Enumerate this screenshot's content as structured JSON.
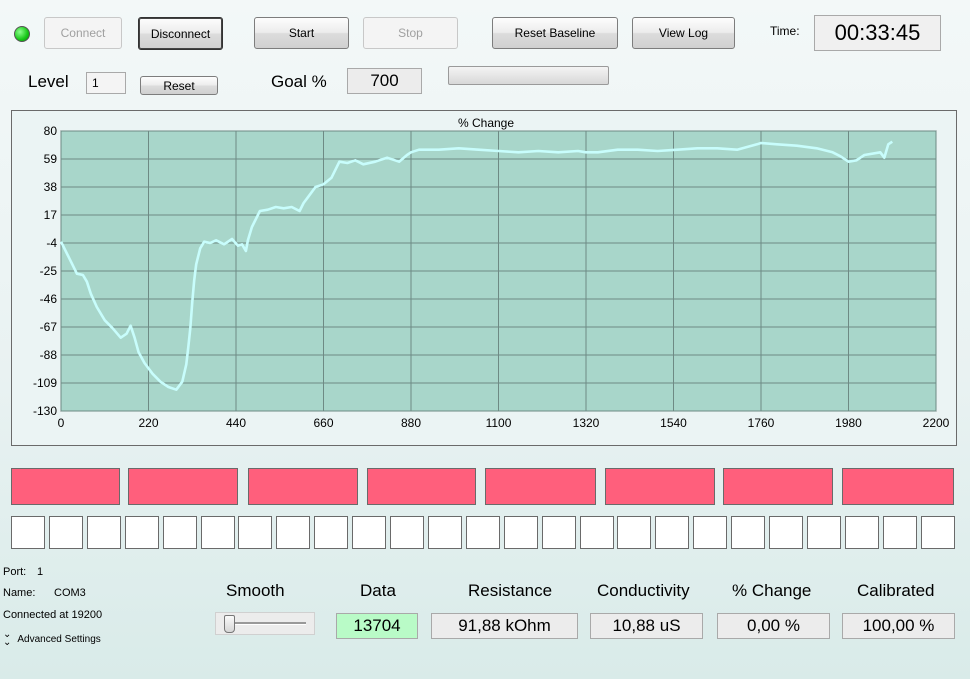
{
  "status": {
    "indicator_color": "#22dd22"
  },
  "toolbar": {
    "connect": "Connect",
    "disconnect": "Disconnect",
    "start": "Start",
    "stop": "Stop",
    "reset_baseline": "Reset Baseline",
    "view_log": "View Log",
    "time_label": "Time:",
    "time_value": "00:33:45"
  },
  "level": {
    "label": "Level",
    "value": "1",
    "reset": "Reset"
  },
  "goal": {
    "label": "Goal %",
    "value": "700",
    "progress": 0
  },
  "chart_data": {
    "type": "line",
    "title": "% Change",
    "xlim": [
      0,
      2200
    ],
    "ylim": [
      -130,
      80
    ],
    "xticks": [
      0,
      220,
      440,
      660,
      880,
      1100,
      1320,
      1540,
      1760,
      1980,
      2200
    ],
    "yticks": [
      80,
      59,
      38,
      17,
      -4,
      -25,
      -46,
      -67,
      -88,
      -109,
      -130
    ],
    "grid": true,
    "colors": {
      "plot_bg": "#a8d6ca",
      "line": "#c8fdfc",
      "grid": "#6e8a84"
    },
    "series": [
      {
        "x": [
          0,
          20,
          40,
          55,
          65,
          75,
          90,
          110,
          130,
          150,
          165,
          175,
          185,
          195,
          210,
          230,
          250,
          270,
          290,
          305,
          315,
          320,
          325,
          330,
          335,
          340,
          350,
          360,
          375,
          390,
          410,
          430,
          445,
          455,
          465,
          470,
          480,
          490,
          500,
          520,
          540,
          560,
          580,
          600,
          610,
          620,
          640,
          660,
          680,
          700,
          720,
          740,
          760,
          790,
          820,
          850,
          870,
          880,
          900,
          950,
          1000,
          1050,
          1100,
          1150,
          1200,
          1250,
          1300,
          1320,
          1350,
          1400,
          1450,
          1500,
          1550,
          1600,
          1650,
          1700,
          1750,
          1760,
          1800,
          1850,
          1900,
          1940,
          1960,
          1980,
          2000,
          2020,
          2060,
          2070,
          2080,
          2090
        ],
        "y": [
          -3,
          -15,
          -27,
          -28,
          -33,
          -42,
          -52,
          -62,
          -68,
          -75,
          -72,
          -66,
          -75,
          -86,
          -94,
          -102,
          -108,
          -112,
          -114,
          -108,
          -95,
          -82,
          -68,
          -48,
          -32,
          -20,
          -8,
          -3,
          -4,
          -2,
          -5,
          -1,
          -6,
          -5,
          -10,
          -2,
          8,
          14,
          20,
          21,
          23,
          22,
          23,
          20,
          26,
          30,
          38,
          40,
          45,
          57,
          56,
          58,
          55,
          57,
          60,
          57,
          62,
          64,
          66,
          66,
          67,
          66,
          65,
          64,
          65,
          64,
          65,
          64,
          64,
          66,
          66,
          65,
          66,
          67,
          67,
          66,
          70,
          71,
          70,
          69,
          67,
          64,
          61,
          57,
          58,
          62,
          64,
          60,
          70,
          72
        ]
      }
    ]
  },
  "segments": {
    "blocks": 8,
    "boxes": 25,
    "block_color": "#ff5f7c"
  },
  "port_info": {
    "port_label": "Port:",
    "port_value": "1",
    "name_label": "Name:",
    "name_value": "COM3",
    "connected": "Connected at 19200",
    "advanced": "Advanced Settings"
  },
  "readouts": {
    "smooth_label": "Smooth",
    "smooth_value": 0,
    "data_label": "Data",
    "data_value": "13704",
    "resistance_label": "Resistance",
    "resistance_value": "91,88 kOhm",
    "conductivity_label": "Conductivity",
    "conductivity_value": "10,88 uS",
    "change_label": "% Change",
    "change_value": "0,00 %",
    "calibrated_label": "Calibrated",
    "calibrated_value": "100,00 %"
  }
}
